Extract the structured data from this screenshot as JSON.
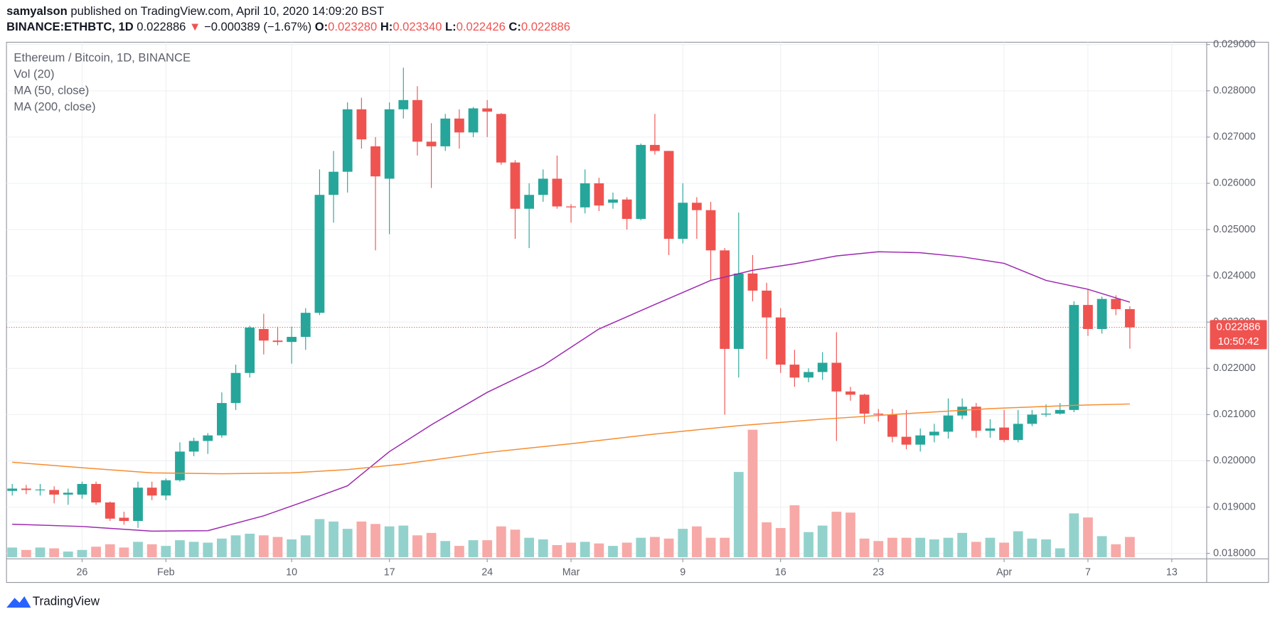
{
  "header": {
    "author": "samyalson",
    "published": "published on TradingView.com, April 10, 2020 14:09:20 BST",
    "symbol": "BINANCE:ETHBTC, 1D",
    "price": "0.022886",
    "arrow": "▼",
    "change": "−0.000389 (−1.67%)",
    "ohlc": [
      {
        "key": "O:",
        "value": "0.023280"
      },
      {
        "key": "H:",
        "value": "0.023340"
      },
      {
        "key": "L:",
        "value": "0.022426"
      },
      {
        "key": "C:",
        "value": "0.022886"
      }
    ]
  },
  "chart_data": {
    "type": "candlestick",
    "legend": [
      "Ethereum / Bitcoin, 1D, BINANCE",
      "Vol (20)",
      "MA (50, close)",
      "MA (200, close)"
    ],
    "x": [
      0,
      1,
      2,
      3,
      4,
      5,
      6,
      7,
      8,
      9,
      10,
      11,
      12,
      13,
      14,
      15,
      16,
      17,
      18,
      19,
      20,
      21,
      22,
      23,
      24,
      25,
      26,
      27,
      28,
      29,
      30,
      31,
      32,
      33,
      34,
      35,
      36,
      37,
      38,
      39,
      40,
      41,
      42,
      43,
      44,
      45,
      46,
      47,
      48,
      49,
      50,
      51,
      52,
      53,
      54,
      55,
      56,
      57,
      58,
      59,
      60,
      61,
      62,
      63,
      64,
      65,
      66,
      67,
      68,
      69,
      70,
      71,
      72,
      73,
      74,
      75,
      76,
      77,
      78,
      79,
      80
    ],
    "open": [
      0.01935,
      0.0194,
      0.01938,
      0.01937,
      0.01927,
      0.01927,
      0.0195,
      0.0191,
      0.01877,
      0.0187,
      0.01942,
      0.01925,
      0.01958,
      0.0202,
      0.02043,
      0.02055,
      0.02125,
      0.0219,
      0.02285,
      0.0226,
      0.02257,
      0.02268,
      0.0232,
      0.02575,
      0.02625,
      0.0276,
      0.0268,
      0.0261,
      0.0276,
      0.0278,
      0.0269,
      0.0268,
      0.0274,
      0.0271,
      0.02762,
      0.0275,
      0.02645,
      0.02545,
      0.02575,
      0.0261,
      0.0255,
      0.02548,
      0.026,
      0.02558,
      0.02565,
      0.02523,
      0.02683,
      0.0267,
      0.0248,
      0.02558,
      0.02542,
      0.02455,
      0.02242,
      0.02405,
      0.02368,
      0.0231,
      0.02208,
      0.0218,
      0.02192,
      0.02212,
      0.0215,
      0.02143,
      0.02102,
      0.021,
      0.02052,
      0.02035,
      0.02055,
      0.02063,
      0.02098,
      0.02117,
      0.02065,
      0.02072,
      0.02045,
      0.0208,
      0.021,
      0.02102,
      0.0211,
      0.02337,
      0.02285,
      0.0235,
      0.02328
    ],
    "high": [
      0.0195,
      0.01948,
      0.0195,
      0.01945,
      0.0194,
      0.01955,
      0.01955,
      0.01912,
      0.0189,
      0.01955,
      0.01955,
      0.01962,
      0.0204,
      0.0205,
      0.0206,
      0.02148,
      0.02208,
      0.02292,
      0.02318,
      0.0229,
      0.0229,
      0.0233,
      0.0263,
      0.0267,
      0.02775,
      0.02785,
      0.027,
      0.02775,
      0.0285,
      0.0281,
      0.0273,
      0.0275,
      0.0276,
      0.02765,
      0.0278,
      0.02752,
      0.0265,
      0.026,
      0.0263,
      0.0266,
      0.02555,
      0.0263,
      0.02612,
      0.0258,
      0.0257,
      0.02686,
      0.0275,
      0.0267,
      0.026,
      0.0257,
      0.0256,
      0.0246,
      0.02537,
      0.02445,
      0.02385,
      0.0233,
      0.0224,
      0.022,
      0.02235,
      0.02278,
      0.0216,
      0.02145,
      0.02112,
      0.02112,
      0.0211,
      0.0207,
      0.0208,
      0.02135,
      0.02135,
      0.02125,
      0.0209,
      0.0211,
      0.0211,
      0.0211,
      0.02122,
      0.02125,
      0.02345,
      0.0237,
      0.02355,
      0.02358,
      0.02334
    ],
    "low": [
      0.01925,
      0.01928,
      0.01925,
      0.01908,
      0.01905,
      0.01918,
      0.01905,
      0.0187,
      0.01862,
      0.01855,
      0.01915,
      0.01915,
      0.01955,
      0.0201,
      0.02015,
      0.0205,
      0.0211,
      0.0218,
      0.0223,
      0.0225,
      0.0221,
      0.0224,
      0.02315,
      0.02515,
      0.0258,
      0.02675,
      0.02455,
      0.0249,
      0.0274,
      0.0266,
      0.0259,
      0.0267,
      0.02675,
      0.027,
      0.027,
      0.0264,
      0.0248,
      0.0246,
      0.0256,
      0.02545,
      0.02515,
      0.02535,
      0.0254,
      0.02545,
      0.025,
      0.0252,
      0.02662,
      0.02445,
      0.0247,
      0.0248,
      0.0239,
      0.021,
      0.0218,
      0.02345,
      0.0222,
      0.0219,
      0.0216,
      0.0217,
      0.02175,
      0.02043,
      0.0213,
      0.0208,
      0.02085,
      0.0204,
      0.02025,
      0.0202,
      0.0204,
      0.02048,
      0.0209,
      0.0205,
      0.0205,
      0.0204,
      0.0204,
      0.02075,
      0.02095,
      0.021,
      0.02105,
      0.0227,
      0.02275,
      0.02315,
      0.022426
    ],
    "close": [
      0.0194,
      0.01937,
      0.01938,
      0.01927,
      0.01931,
      0.0195,
      0.0191,
      0.01875,
      0.0187,
      0.01942,
      0.01925,
      0.01958,
      0.0202,
      0.02043,
      0.02055,
      0.02125,
      0.0219,
      0.02288,
      0.0226,
      0.02257,
      0.02268,
      0.0232,
      0.02575,
      0.02625,
      0.0276,
      0.02695,
      0.02615,
      0.0276,
      0.0278,
      0.0269,
      0.0268,
      0.0274,
      0.0271,
      0.02762,
      0.02755,
      0.02645,
      0.02545,
      0.02575,
      0.0261,
      0.0255,
      0.02548,
      0.026,
      0.02552,
      0.02565,
      0.02523,
      0.02683,
      0.0267,
      0.0248,
      0.02558,
      0.02542,
      0.02455,
      0.02242,
      0.02405,
      0.02368,
      0.0231,
      0.02208,
      0.0218,
      0.02192,
      0.02212,
      0.0215,
      0.02143,
      0.02102,
      0.021,
      0.02052,
      0.02035,
      0.02055,
      0.02063,
      0.02098,
      0.02117,
      0.02065,
      0.0207,
      0.02045,
      0.0208,
      0.021,
      0.02102,
      0.0211,
      0.02337,
      0.02285,
      0.0235,
      0.02328,
      0.022886
    ],
    "volume": [
      12,
      9,
      12,
      11,
      7,
      9,
      13,
      16,
      12,
      19,
      16,
      14,
      21,
      19,
      18,
      23,
      27,
      29,
      27,
      25,
      22,
      27,
      47,
      44,
      35,
      44,
      41,
      38,
      39,
      27,
      30,
      20,
      14,
      21,
      21,
      38,
      34,
      24,
      22,
      15,
      18,
      19,
      17,
      14,
      18,
      24,
      25,
      23,
      35,
      38,
      24,
      24,
      105,
      157,
      43,
      36,
      64,
      31,
      39,
      56,
      55,
      23,
      20,
      24,
      24,
      24,
      22,
      24,
      30,
      19,
      24,
      18,
      32,
      23,
      22,
      11,
      54,
      49,
      26,
      16,
      25
    ],
    "up_color": "#26a69a",
    "down_color": "#ef5350",
    "volume_up_color": "#93d2cc",
    "volume_down_color": "#f7a9a7",
    "ma": [
      {
        "name": "MA (50, close)",
        "color": "#9c27b0",
        "x": [
          0,
          5,
          10,
          14,
          18,
          21,
          24,
          27,
          30,
          34,
          38,
          42,
          46,
          50,
          53,
          56,
          59,
          62,
          65,
          68,
          71,
          74,
          77,
          80
        ],
        "values": [
          0.01863,
          0.01858,
          0.01848,
          0.01849,
          0.01881,
          0.01913,
          0.01946,
          0.0202,
          0.02078,
          0.02148,
          0.02206,
          0.02285,
          0.02338,
          0.0239,
          0.02412,
          0.02426,
          0.02443,
          0.02452,
          0.0245,
          0.02441,
          0.02427,
          0.0239,
          0.02371,
          0.02343
        ]
      },
      {
        "name": "MA (200, close)",
        "color": "#f68c2e",
        "x": [
          0,
          5,
          10,
          15,
          20,
          24,
          28,
          34,
          40,
          46,
          52,
          58,
          64,
          70,
          76,
          80
        ],
        "values": [
          0.01997,
          0.01985,
          0.01974,
          0.01972,
          0.01974,
          0.01981,
          0.01993,
          0.02018,
          0.02037,
          0.02058,
          0.02076,
          0.0209,
          0.02102,
          0.02113,
          0.0212,
          0.02123
        ]
      }
    ],
    "last_price": 0.022886,
    "last_price_label": "0.022886",
    "countdown": "10:50:42",
    "xlim": [
      -0.41,
      85.5
    ],
    "xticks": [
      {
        "value": 5,
        "label": "26"
      },
      {
        "value": 11,
        "label": "Feb"
      },
      {
        "value": 20,
        "label": "10"
      },
      {
        "value": 27,
        "label": "17"
      },
      {
        "value": 34,
        "label": "24"
      },
      {
        "value": 40,
        "label": "Mar"
      },
      {
        "value": 48,
        "label": "9"
      },
      {
        "value": 55,
        "label": "16"
      },
      {
        "value": 62,
        "label": "23"
      },
      {
        "value": 71,
        "label": "Apr"
      },
      {
        "value": 77,
        "label": "7"
      },
      {
        "value": 83,
        "label": "13"
      }
    ],
    "ylim": [
      0.01788,
      0.02905
    ],
    "yticks": [
      {
        "value": 0.018,
        "label": "0.018000"
      },
      {
        "value": 0.019,
        "label": "0.019000"
      },
      {
        "value": 0.02,
        "label": "0.020000"
      },
      {
        "value": 0.021,
        "label": "0.021000"
      },
      {
        "value": 0.022,
        "label": "0.022000"
      },
      {
        "value": 0.023,
        "label": "0.023000"
      },
      {
        "value": 0.024,
        "label": "0.024000"
      },
      {
        "value": 0.025,
        "label": "0.025000"
      },
      {
        "value": 0.026,
        "label": "0.026000"
      },
      {
        "value": 0.027,
        "label": "0.027000"
      },
      {
        "value": 0.028,
        "label": "0.028000"
      },
      {
        "value": 0.029,
        "label": "0.029000"
      }
    ],
    "grid": true
  },
  "footer": {
    "brand": "TradingView"
  }
}
